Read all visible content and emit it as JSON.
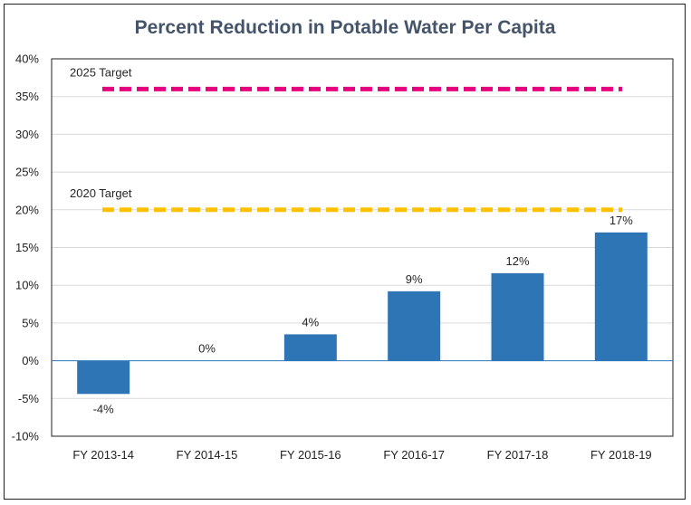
{
  "chart_data": {
    "type": "bar",
    "title": "Percent Reduction in Potable Water Per Capita",
    "xlabel": "",
    "ylabel": "",
    "categories": [
      "FY 2013-14",
      "FY 2014-15",
      "FY 2015-16",
      "FY 2016-17",
      "FY 2017-18",
      "FY 2018-19"
    ],
    "values": [
      -4.4,
      0,
      3.5,
      9.2,
      11.6,
      17.0
    ],
    "data_labels": [
      "-4%",
      "0%",
      "4%",
      "9%",
      "12%",
      "17%"
    ],
    "ylim": [
      -10,
      40
    ],
    "yticks": [
      -10,
      -5,
      0,
      5,
      10,
      15,
      20,
      25,
      30,
      35,
      40
    ],
    "ytick_labels": [
      "-10%",
      "-5%",
      "0%",
      "5%",
      "10%",
      "15%",
      "20%",
      "25%",
      "30%",
      "35%",
      "40%"
    ],
    "grid": true,
    "bar_color": "#2e75b6",
    "targets": [
      {
        "label": "2025 Target",
        "value": 36,
        "color": "#e6007e"
      },
      {
        "label": "2020 Target",
        "value": 20,
        "color": "#ffc000"
      }
    ]
  }
}
